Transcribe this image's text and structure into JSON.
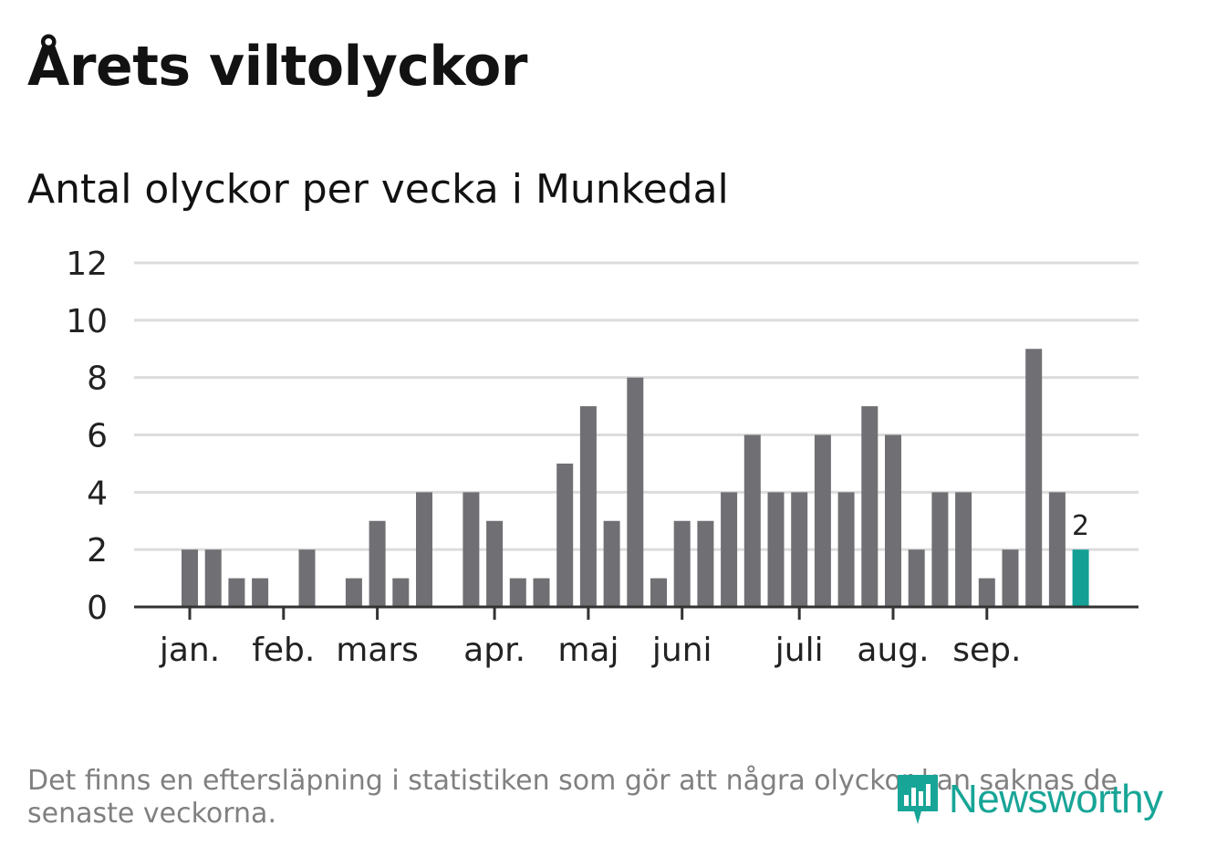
{
  "title": "Årets viltolyckor",
  "subtitle": "Antal olyckor per vecka i Munkedal",
  "footnote": "Det finns en eftersläpning i statistiken som gör att några olyckor kan saknas de senaste veckorna.",
  "brand": {
    "name": "Newsworthy",
    "icon": "newsworthy-logo-icon"
  },
  "colors": {
    "bar": "#707074",
    "highlight": "#14a095",
    "grid": "#dcdcdc",
    "axis": "#333333",
    "text": "#222222",
    "brand": "#17a597"
  },
  "chart_data": {
    "type": "bar",
    "title": "Antal olyckor per vecka i Munkedal",
    "xlabel": "",
    "ylabel": "",
    "ylim": [
      0,
      12
    ],
    "yticks": [
      0,
      2,
      4,
      6,
      8,
      10,
      12
    ],
    "grid": true,
    "weeks": [
      1,
      2,
      3,
      4,
      5,
      6,
      7,
      8,
      9,
      10,
      11,
      12,
      13,
      14,
      15,
      16,
      17,
      18,
      19,
      20,
      21,
      22,
      23,
      24,
      25,
      26,
      27,
      28,
      29,
      30,
      31,
      32,
      33,
      34,
      35,
      36,
      37,
      38,
      39
    ],
    "values": [
      2,
      2,
      1,
      1,
      0,
      2,
      0,
      1,
      3,
      1,
      4,
      0,
      4,
      3,
      1,
      1,
      5,
      7,
      3,
      8,
      1,
      3,
      3,
      4,
      6,
      4,
      4,
      6,
      4,
      7,
      6,
      2,
      4,
      4,
      1,
      2,
      9,
      4,
      2
    ],
    "highlight_last": true,
    "last_value_label": "2",
    "month_labels": [
      {
        "label": "jan.",
        "week": 1
      },
      {
        "label": "feb.",
        "week": 5
      },
      {
        "label": "mars",
        "week": 9
      },
      {
        "label": "apr.",
        "week": 14
      },
      {
        "label": "maj",
        "week": 18
      },
      {
        "label": "juni",
        "week": 22
      },
      {
        "label": "juli",
        "week": 27
      },
      {
        "label": "aug.",
        "week": 31
      },
      {
        "label": "sep.",
        "week": 35
      }
    ]
  }
}
